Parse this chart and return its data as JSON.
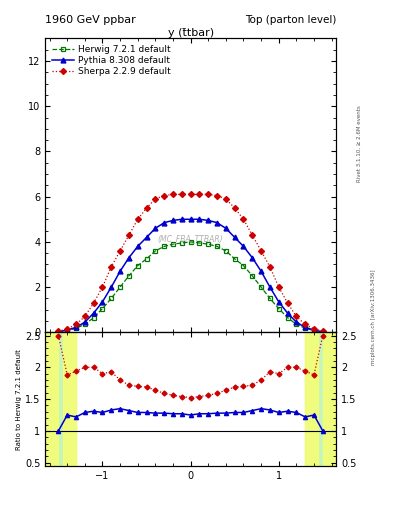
{
  "title_left": "1960 GeV ppbar",
  "title_right": "Top (parton level)",
  "main_title": "y (t̄tbar)",
  "ylabel_ratio": "Ratio to Herwig 7.2.1 default",
  "right_label_top": "Rivet 3.1.10, ≥ 2.6M events",
  "right_label_bottom": "mcplots.cern.ch [arXiv:1306.3436]",
  "watermark": "(MC_FBA_TTBAR)",
  "ylim_main": [
    0,
    13
  ],
  "ylim_ratio": [
    0.45,
    2.55
  ],
  "xlim": [
    -1.65,
    1.65
  ],
  "herwig_x": [
    -1.5,
    -1.4,
    -1.3,
    -1.2,
    -1.1,
    -1.0,
    -0.9,
    -0.8,
    -0.7,
    -0.6,
    -0.5,
    -0.4,
    -0.3,
    -0.2,
    -0.1,
    0.0,
    0.1,
    0.2,
    0.3,
    0.4,
    0.5,
    0.6,
    0.7,
    0.8,
    0.9,
    1.0,
    1.1,
    1.2,
    1.3,
    1.4,
    1.5
  ],
  "herwig_y": [
    0.02,
    0.08,
    0.18,
    0.35,
    0.65,
    1.05,
    1.5,
    2.0,
    2.5,
    2.95,
    3.25,
    3.6,
    3.8,
    3.9,
    3.95,
    4.0,
    3.95,
    3.9,
    3.8,
    3.6,
    3.25,
    2.95,
    2.5,
    2.0,
    1.5,
    1.05,
    0.65,
    0.35,
    0.18,
    0.08,
    0.02
  ],
  "pythia_x": [
    -1.5,
    -1.4,
    -1.3,
    -1.2,
    -1.1,
    -1.0,
    -0.9,
    -0.8,
    -0.7,
    -0.6,
    -0.5,
    -0.4,
    -0.3,
    -0.2,
    -0.1,
    0.0,
    0.1,
    0.2,
    0.3,
    0.4,
    0.5,
    0.6,
    0.7,
    0.8,
    0.9,
    1.0,
    1.1,
    1.2,
    1.3,
    1.4,
    1.5
  ],
  "pythia_y": [
    0.02,
    0.1,
    0.22,
    0.45,
    0.85,
    1.35,
    2.0,
    2.7,
    3.3,
    3.8,
    4.2,
    4.6,
    4.85,
    4.95,
    5.0,
    5.0,
    5.0,
    4.95,
    4.85,
    4.6,
    4.2,
    3.8,
    3.3,
    2.7,
    2.0,
    1.35,
    0.85,
    0.45,
    0.22,
    0.1,
    0.02
  ],
  "sherpa_x": [
    -1.5,
    -1.4,
    -1.3,
    -1.2,
    -1.1,
    -1.0,
    -0.9,
    -0.8,
    -0.7,
    -0.6,
    -0.5,
    -0.4,
    -0.3,
    -0.2,
    -0.1,
    0.0,
    0.1,
    0.2,
    0.3,
    0.4,
    0.5,
    0.6,
    0.7,
    0.8,
    0.9,
    1.0,
    1.1,
    1.2,
    1.3,
    1.4,
    1.5
  ],
  "sherpa_y": [
    0.05,
    0.15,
    0.35,
    0.7,
    1.3,
    2.0,
    2.9,
    3.6,
    4.3,
    5.0,
    5.5,
    5.9,
    6.05,
    6.1,
    6.1,
    6.1,
    6.1,
    6.1,
    6.05,
    5.9,
    5.5,
    5.0,
    4.3,
    3.6,
    2.9,
    2.0,
    1.3,
    0.7,
    0.35,
    0.15,
    0.05
  ],
  "ratio_pythia_x": [
    -1.5,
    -1.4,
    -1.3,
    -1.2,
    -1.1,
    -1.0,
    -0.9,
    -0.8,
    -0.7,
    -0.6,
    -0.5,
    -0.4,
    -0.3,
    -0.2,
    -0.1,
    0.0,
    0.1,
    0.2,
    0.3,
    0.4,
    0.5,
    0.6,
    0.7,
    0.8,
    0.9,
    1.0,
    1.1,
    1.2,
    1.3,
    1.4,
    1.5
  ],
  "ratio_pythia_y": [
    1.0,
    1.25,
    1.22,
    1.29,
    1.31,
    1.29,
    1.33,
    1.35,
    1.32,
    1.29,
    1.29,
    1.28,
    1.28,
    1.27,
    1.27,
    1.25,
    1.27,
    1.27,
    1.28,
    1.28,
    1.29,
    1.29,
    1.32,
    1.35,
    1.33,
    1.29,
    1.31,
    1.29,
    1.22,
    1.25,
    1.0
  ],
  "ratio_sherpa_x": [
    -1.5,
    -1.4,
    -1.3,
    -1.2,
    -1.1,
    -1.0,
    -0.9,
    -0.8,
    -0.7,
    -0.6,
    -0.5,
    -0.4,
    -0.3,
    -0.2,
    -0.1,
    0.0,
    0.1,
    0.2,
    0.3,
    0.4,
    0.5,
    0.6,
    0.7,
    0.8,
    0.9,
    1.0,
    1.1,
    1.2,
    1.3,
    1.4,
    1.5
  ],
  "ratio_sherpa_y": [
    2.5,
    1.88,
    1.94,
    2.0,
    2.0,
    1.9,
    1.93,
    1.8,
    1.72,
    1.7,
    1.69,
    1.64,
    1.59,
    1.56,
    1.54,
    1.525,
    1.54,
    1.56,
    1.59,
    1.64,
    1.69,
    1.7,
    1.72,
    1.8,
    1.93,
    1.9,
    2.0,
    2.0,
    1.94,
    1.88,
    2.5
  ],
  "herwig_color": "#007700",
  "pythia_color": "#0000cc",
  "sherpa_color": "#cc0000",
  "tick_label_size": 7,
  "axis_label_size": 6.5,
  "title_size": 8,
  "legend_size": 6.5
}
